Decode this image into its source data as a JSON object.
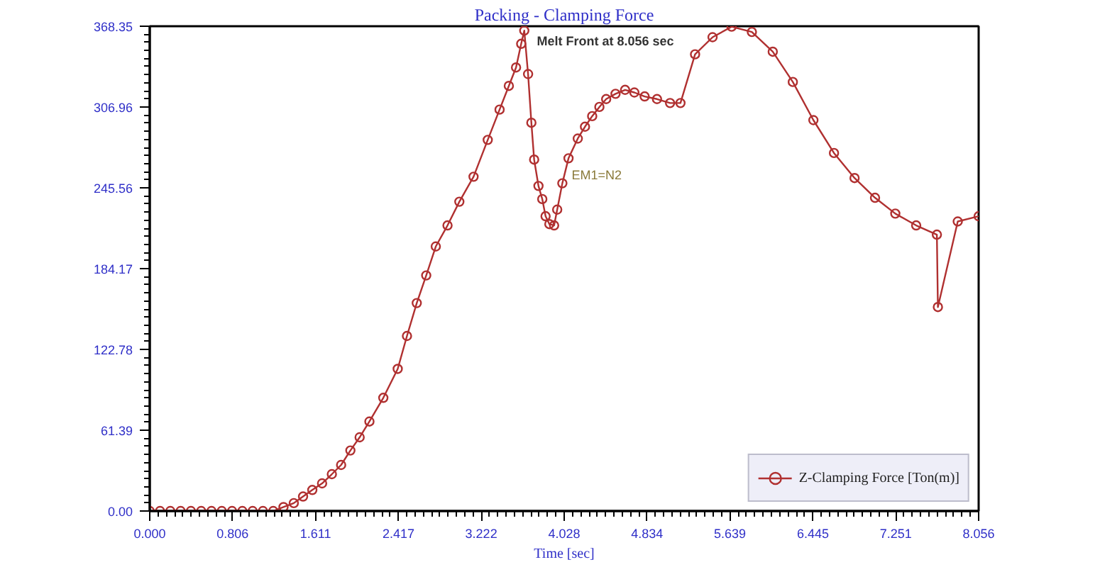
{
  "chart_data": {
    "type": "line",
    "title": "Packing - Clamping Force",
    "xlabel": "Time [sec]",
    "x": [
      0,
      0.1,
      0.2,
      0.3,
      0.4,
      0.5,
      0.6,
      0.7,
      0.8,
      0.9,
      1.0,
      1.1,
      1.2,
      1.3,
      1.4,
      1.49,
      1.58,
      1.675,
      1.77,
      1.86,
      1.95,
      2.04,
      2.135,
      2.27,
      2.41,
      2.5,
      2.595,
      2.687,
      2.78,
      2.894,
      3.009,
      3.147,
      3.285,
      3.4,
      3.49,
      3.56,
      3.61,
      3.64,
      3.677,
      3.709,
      3.736,
      3.778,
      3.815,
      3.847,
      3.884,
      3.93,
      3.96,
      4.01,
      4.07,
      4.16,
      4.23,
      4.3,
      4.37,
      4.436,
      4.527,
      4.62,
      4.71,
      4.81,
      4.93,
      5.057,
      5.158,
      5.3,
      5.47,
      5.655,
      5.852,
      6.055,
      6.25,
      6.45,
      6.65,
      6.85,
      7.049,
      7.246,
      7.449,
      7.65,
      7.66,
      7.853,
      8.056
    ],
    "series": [
      {
        "name": "Z-Clamping Force [Ton(m)]",
        "color": "#b03030",
        "values": [
          0,
          0,
          0,
          0,
          0,
          0,
          0,
          0,
          0,
          0,
          0,
          0,
          0,
          3,
          6,
          11,
          16,
          21,
          28,
          35,
          46,
          56,
          68,
          86,
          108,
          133,
          158,
          179,
          201,
          217,
          235,
          254,
          282,
          305,
          323,
          337,
          355,
          365,
          332,
          295,
          267,
          247,
          237,
          224,
          218,
          217,
          229,
          249,
          268,
          283,
          292,
          300,
          307,
          313,
          317,
          320,
          318,
          315,
          313,
          310,
          310,
          347,
          360,
          368,
          364,
          349,
          326,
          297,
          272,
          253,
          238,
          226,
          217,
          210,
          155,
          220,
          224
        ]
      }
    ],
    "xlim": [
      0,
      8.056
    ],
    "ylim": [
      0,
      368.35
    ],
    "xticks": [
      {
        "value": 0,
        "label": "0.000"
      },
      0.806,
      1.611,
      2.417,
      3.222,
      4.028,
      4.834,
      5.639,
      6.445,
      7.251,
      8.056
    ],
    "yticks": [
      {
        "value": 0,
        "label": "0.00"
      },
      61.39,
      122.78,
      184.17,
      245.56,
      306.96,
      368.35
    ],
    "grid": false,
    "legend": "bottom right",
    "marker": "circle",
    "line_style": "solid",
    "annotations": [
      "Melt Front at 8.056 sec",
      "EM1=N2"
    ]
  }
}
